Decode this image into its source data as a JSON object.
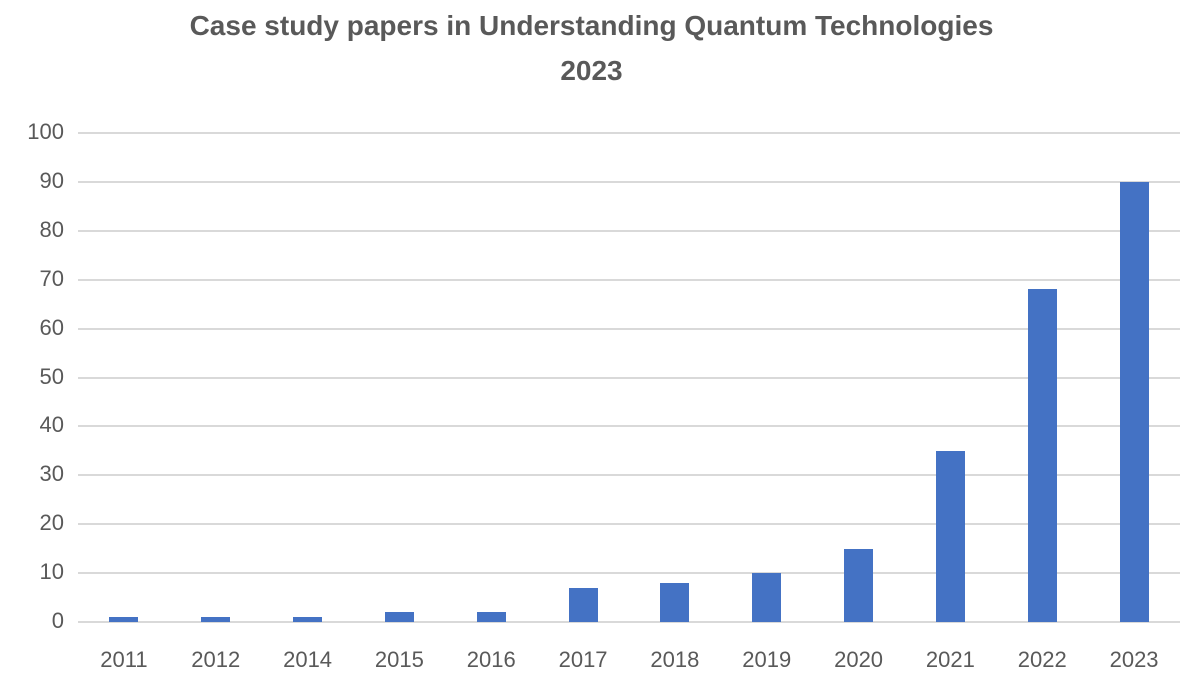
{
  "chart_data": {
    "type": "bar",
    "title": "Case study papers in Understanding Quantum Technologies 2023",
    "title_lines": [
      "Case study papers in Understanding Quantum Technologies",
      "2023"
    ],
    "xlabel": "",
    "ylabel": "",
    "categories": [
      "2011",
      "2012",
      "2014",
      "2015",
      "2016",
      "2017",
      "2018",
      "2019",
      "2020",
      "2021",
      "2022",
      "2023"
    ],
    "values": [
      1,
      1,
      1,
      2,
      2,
      7,
      8,
      10,
      15,
      35,
      68,
      90
    ],
    "ylim": [
      0,
      100
    ],
    "yticks": [
      "0",
      "10",
      "20",
      "30",
      "40",
      "50",
      "60",
      "70",
      "80",
      "90",
      "100"
    ],
    "grid": true,
    "legend": null,
    "bar_color": "#4472c4"
  }
}
